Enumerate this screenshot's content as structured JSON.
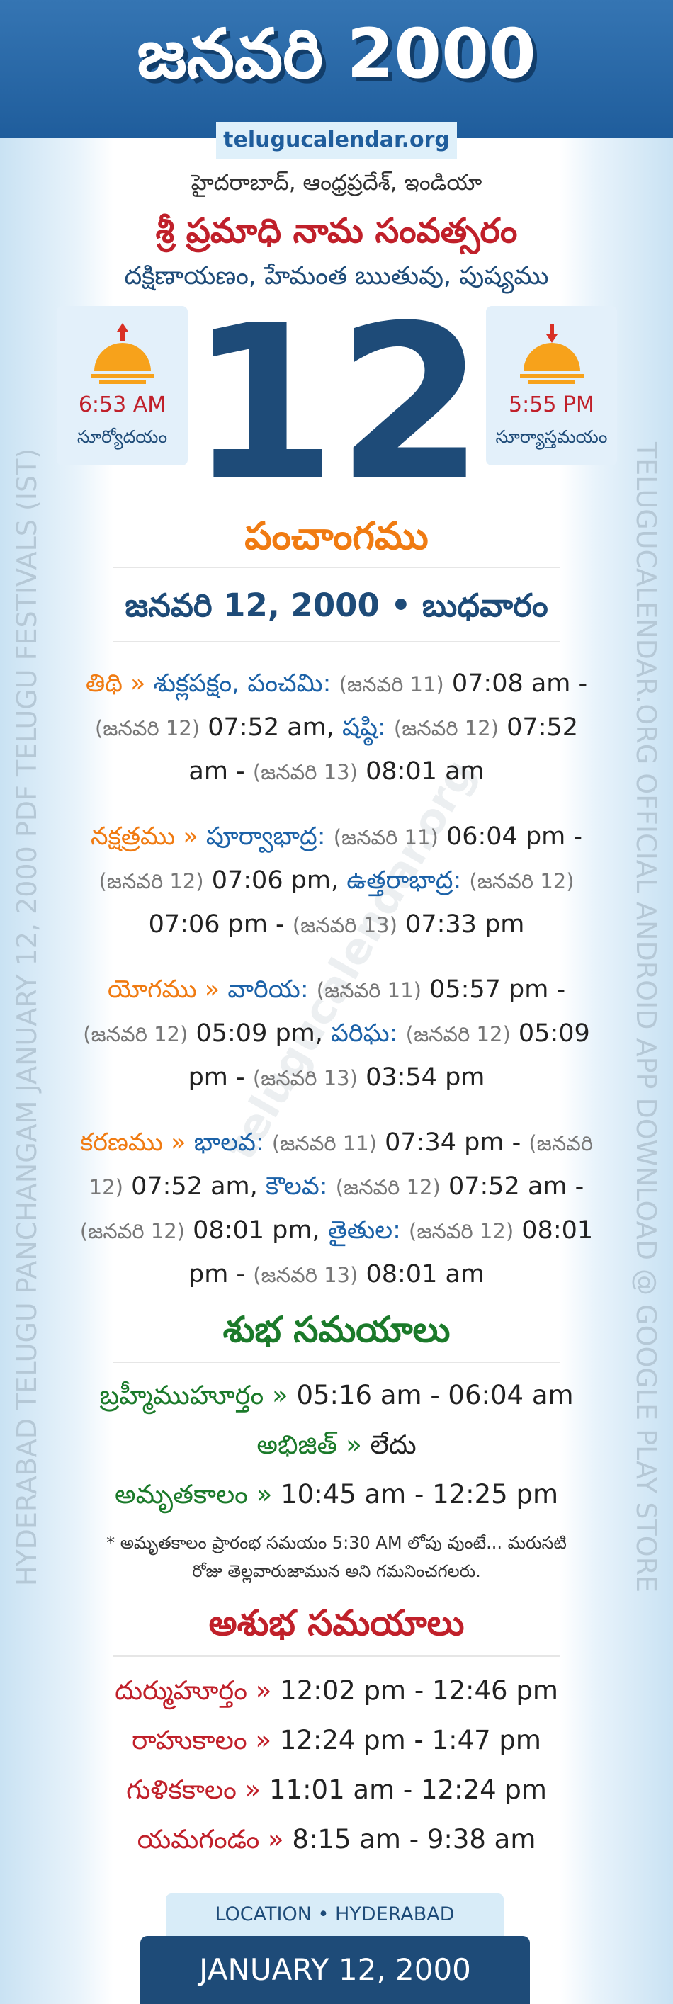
{
  "header": {
    "title": "జనవరి 2000",
    "site": "telugucalendar.org"
  },
  "location": "హైదరాబాద్, ఆంధ్రప్రదేశ్, ఇండియా",
  "samvatsaram": "శ్రీ ప్రమాధి నామ సంవత్సరం",
  "season": "దక్షిణాయణం, హేమంత ఋతువు, పుష్యము",
  "day": "12",
  "sunrise": {
    "time": "6:53 AM",
    "label": "సూర్యోదయం"
  },
  "sunset": {
    "time": "5:55 PM",
    "label": "సూర్యాస్తమయం"
  },
  "panchangam": {
    "heading": "పంచాంగము",
    "date": "జనవరి 12, 2000 • బుధవారం",
    "items": [
      {
        "label": "తిథి »",
        "entries": [
          {
            "name": "శుక్లపక్షం, పంచమి:",
            "from_day": "(జనవరి 11)",
            "from_time": "07:08 am -",
            "to_day": "(జనవరి 12)",
            "to_time": "07:52 am,"
          },
          {
            "name": "షష్ఠి:",
            "from_day": "(జనవరి 12)",
            "from_time": "07:52 am -",
            "to_day": "(జనవరి 13)",
            "to_time": "08:01 am"
          }
        ]
      },
      {
        "label": "నక్షత్రము »",
        "entries": [
          {
            "name": "పూర్వాభాద్ర:",
            "from_day": "(జనవరి 11)",
            "from_time": "06:04 pm -",
            "to_day": "(జనవరి 12)",
            "to_time": "07:06 pm,"
          },
          {
            "name": "ఉత్తరాభాద్ర:",
            "from_day": "(జనవరి 12)",
            "from_time": "07:06 pm -",
            "to_day": "(జనవరి 13)",
            "to_time": "07:33 pm"
          }
        ]
      },
      {
        "label": "యోగము »",
        "entries": [
          {
            "name": "వారియ:",
            "from_day": "(జనవరి 11)",
            "from_time": "05:57 pm -",
            "to_day": "(జనవరి 12)",
            "to_time": "05:09 pm,"
          },
          {
            "name": "పరిఘ:",
            "from_day": "(జనవరి 12)",
            "from_time": "05:09 pm -",
            "to_day": "(జనవరి 13)",
            "to_time": "03:54 pm"
          }
        ]
      },
      {
        "label": "కరణము »",
        "entries": [
          {
            "name": "భాలవ:",
            "from_day": "(జనవరి 11)",
            "from_time": "07:34 pm -",
            "to_day": "(జనవరి 12)",
            "to_time": "07:52 am,"
          },
          {
            "name": "కౌలవ:",
            "from_day": "(జనవరి 12)",
            "from_time": "07:52 am -",
            "to_day": "(జనవరి 12)",
            "to_time": "08:01 pm,"
          },
          {
            "name": "తైతుల:",
            "from_day": "(జనవరి 12)",
            "from_time": "08:01 pm -",
            "to_day": "(జనవరి 13)",
            "to_time": "08:01 am"
          }
        ]
      }
    ]
  },
  "shubha": {
    "heading": "శుభ సమయాలు",
    "items": [
      {
        "label": "బ్రహ్మీముహూర్తం »",
        "value": "05:16 am - 06:04 am"
      },
      {
        "label": "అభిజిత్ »",
        "value": "లేదు"
      },
      {
        "label": "అమృతకాలం »",
        "value": "10:45 am - 12:25 pm"
      }
    ],
    "note": "* అమృతకాలం ప్రారంభ సమయం 5:30 AM లోపు వుంటే... మరుసటి రోజు తెల్లవారుజామున అని గమనించగలరు."
  },
  "ashubha": {
    "heading": "అశుభ సమయాలు",
    "items": [
      {
        "label": "దుర్ముహూర్తం »",
        "value": "12:02 pm - 12:46 pm"
      },
      {
        "label": "రాహుకాలం »",
        "value": "12:24 pm - 1:47 pm"
      },
      {
        "label": "గుళికకాలం »",
        "value": "11:01 am - 12:24 pm"
      },
      {
        "label": "యమగండం »",
        "value": "8:15 am - 9:38 am"
      }
    ]
  },
  "footer": {
    "location": "LOCATION • HYDERABAD",
    "date": "JANUARY 12, 2000"
  },
  "side": {
    "left": "HYDERABAD TELUGU PANCHANGAM JANUARY 12, 2000 PDF TELUGU FESTIVALS (IST)",
    "right": "TELUGUCALENDAR.ORG OFFICIAL ANDROID APP DOWNLOAD @ GOOGLE PLAY STORE"
  },
  "watermark": "telugucalendar.org"
}
